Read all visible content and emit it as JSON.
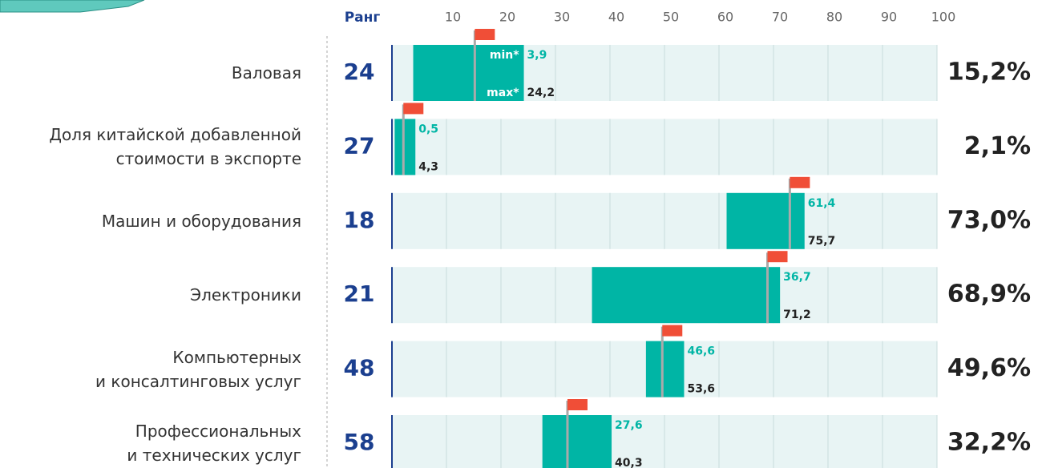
{
  "chart_data": {
    "type": "range",
    "rank_header": "Ранг",
    "min_label": "min*",
    "max_label": "max*",
    "categories": [
      "Валовая",
      "Доля китайской добавленной\nстоимости в экспорте",
      "Машин и оборудования",
      "Электроники",
      "Компьютерных\nи консалтинговых услуг",
      "Профессиональных\nи технических услуг"
    ],
    "ranks": [
      24,
      27,
      18,
      21,
      48,
      58
    ],
    "min": [
      3.9,
      0.5,
      61.4,
      36.7,
      46.6,
      27.6
    ],
    "min_labels": [
      "3,9",
      "0,5",
      "61,4",
      "36,7",
      "46,6",
      "27,6"
    ],
    "max": [
      24.2,
      4.3,
      75.7,
      71.2,
      53.6,
      40.3
    ],
    "max_labels": [
      "24,2",
      "4,3",
      "75,7",
      "71,2",
      "53,6",
      "40,3"
    ],
    "values": [
      15.2,
      2.1,
      73.0,
      68.9,
      49.6,
      32.2
    ],
    "value_labels": [
      "15,2%",
      "2,1%",
      "73,0%",
      "68,9%",
      "49,6%",
      "32,2%"
    ],
    "xlim": [
      0,
      100
    ],
    "xticks": [
      10,
      20,
      30,
      40,
      50,
      60,
      70,
      80,
      90,
      100
    ],
    "color": "#00b5a5",
    "flag_color": "#f04e37",
    "grid": true
  }
}
